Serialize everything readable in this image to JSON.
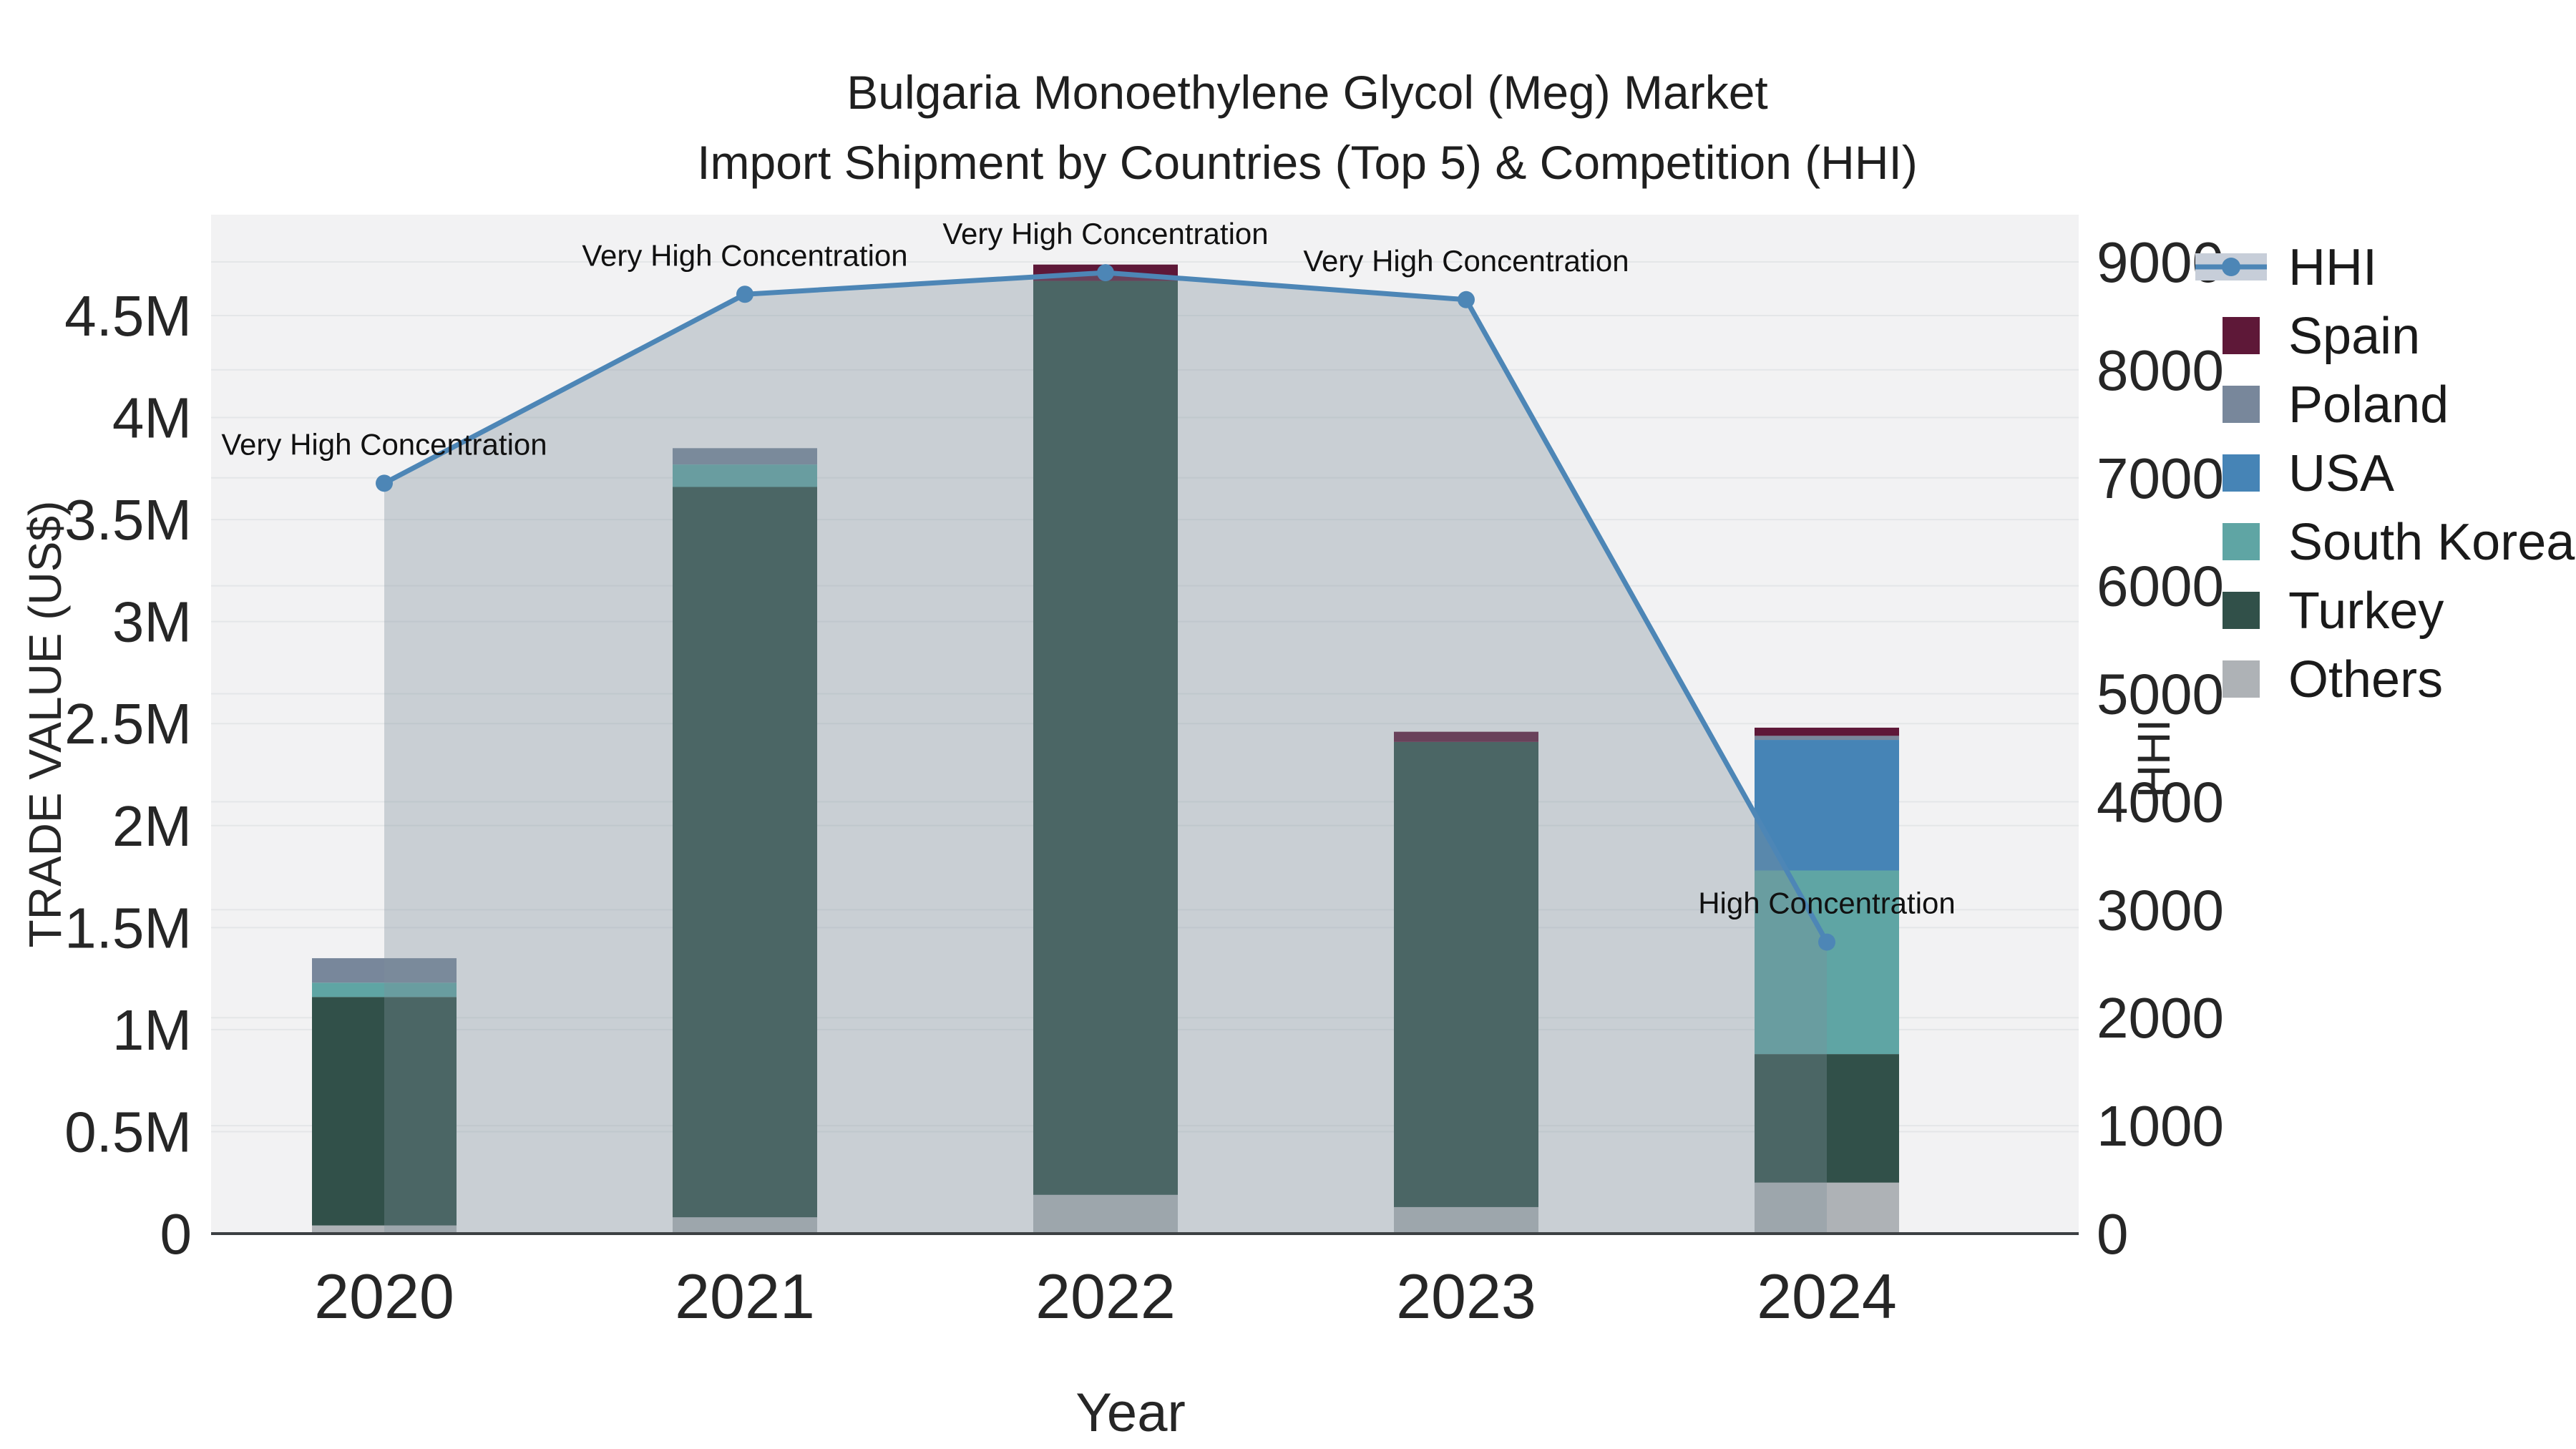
{
  "chart_data": {
    "type": "combo-stacked-bar-line",
    "title_line1": "Bulgaria Monoethylene Glycol (Meg) Market",
    "title_line2": "Import Shipment by Countries (Top 5) & Competition (HHI)",
    "xlabel": "Year",
    "ylabel_left": "TRADE VALUE (US$)",
    "ylabel_right": "HHI",
    "categories": [
      "2020",
      "2021",
      "2022",
      "2023",
      "2024"
    ],
    "bar_unit": "US$ millions",
    "series": [
      {
        "name": "Others",
        "color": "#aeb2b6",
        "values": [
          0.04,
          0.08,
          0.19,
          0.13,
          0.25
        ]
      },
      {
        "name": "Turkey",
        "color": "#315049",
        "values": [
          1.12,
          3.58,
          4.48,
          2.28,
          0.63
        ]
      },
      {
        "name": "South Korea",
        "color": "#5fa5a4",
        "values": [
          0.07,
          0.11,
          0.0,
          0.0,
          0.9
        ]
      },
      {
        "name": "USA",
        "color": "#4684b6",
        "values": [
          0.0,
          0.0,
          0.0,
          0.0,
          0.64
        ]
      },
      {
        "name": "Poland",
        "color": "#78879b",
        "values": [
          0.12,
          0.08,
          0.0,
          0.0,
          0.02
        ]
      },
      {
        "name": "Spain",
        "color": "#5e1838",
        "values": [
          0.0,
          0.0,
          0.08,
          0.05,
          0.04
        ]
      }
    ],
    "line_series": {
      "name": "HHI",
      "color": "#4d86b6",
      "fill_color": "rgba(126,143,155,0.35)",
      "values": [
        6950,
        8700,
        8900,
        8650,
        2700
      ]
    },
    "annotations": [
      {
        "index": 0,
        "text": "Very High Concentration"
      },
      {
        "index": 1,
        "text": "Very High Concentration"
      },
      {
        "index": 2,
        "text": "Very High Concentration"
      },
      {
        "index": 3,
        "text": "Very High Concentration"
      },
      {
        "index": 4,
        "text": "High Concentration"
      }
    ],
    "y_left": {
      "ticks": [
        "0",
        "0.5M",
        "1M",
        "1.5M",
        "2M",
        "2.5M",
        "3M",
        "3.5M",
        "4M",
        "4.5M"
      ],
      "tick_values": [
        0,
        0.5,
        1,
        1.5,
        2,
        2.5,
        3,
        3.5,
        4,
        4.5
      ],
      "range": [
        0,
        4.5
      ]
    },
    "y_right": {
      "ticks": [
        "0",
        "1000",
        "2000",
        "3000",
        "4000",
        "5000",
        "6000",
        "7000",
        "8000",
        "9000"
      ],
      "tick_values": [
        0,
        1000,
        2000,
        3000,
        4000,
        5000,
        6000,
        7000,
        8000,
        9000
      ],
      "range": [
        0,
        9000
      ]
    },
    "legend": [
      {
        "label": "HHI",
        "type": "line",
        "color": "#4d86b6",
        "band_color": "#c7ced9"
      },
      {
        "label": "Spain",
        "type": "swatch",
        "color": "#5e1838"
      },
      {
        "label": "Poland",
        "type": "swatch",
        "color": "#78879b"
      },
      {
        "label": "USA",
        "type": "swatch",
        "color": "#4684b6"
      },
      {
        "label": "South Korea",
        "type": "swatch",
        "color": "#5fa5a4"
      },
      {
        "label": "Turkey",
        "type": "swatch",
        "color": "#315049"
      },
      {
        "label": "Others",
        "type": "swatch",
        "color": "#aeb2b6"
      }
    ],
    "plot_bg_color": "#f2f2f3",
    "gridline_color": "#e4e6e8",
    "axisline_color": "#3c4043"
  }
}
